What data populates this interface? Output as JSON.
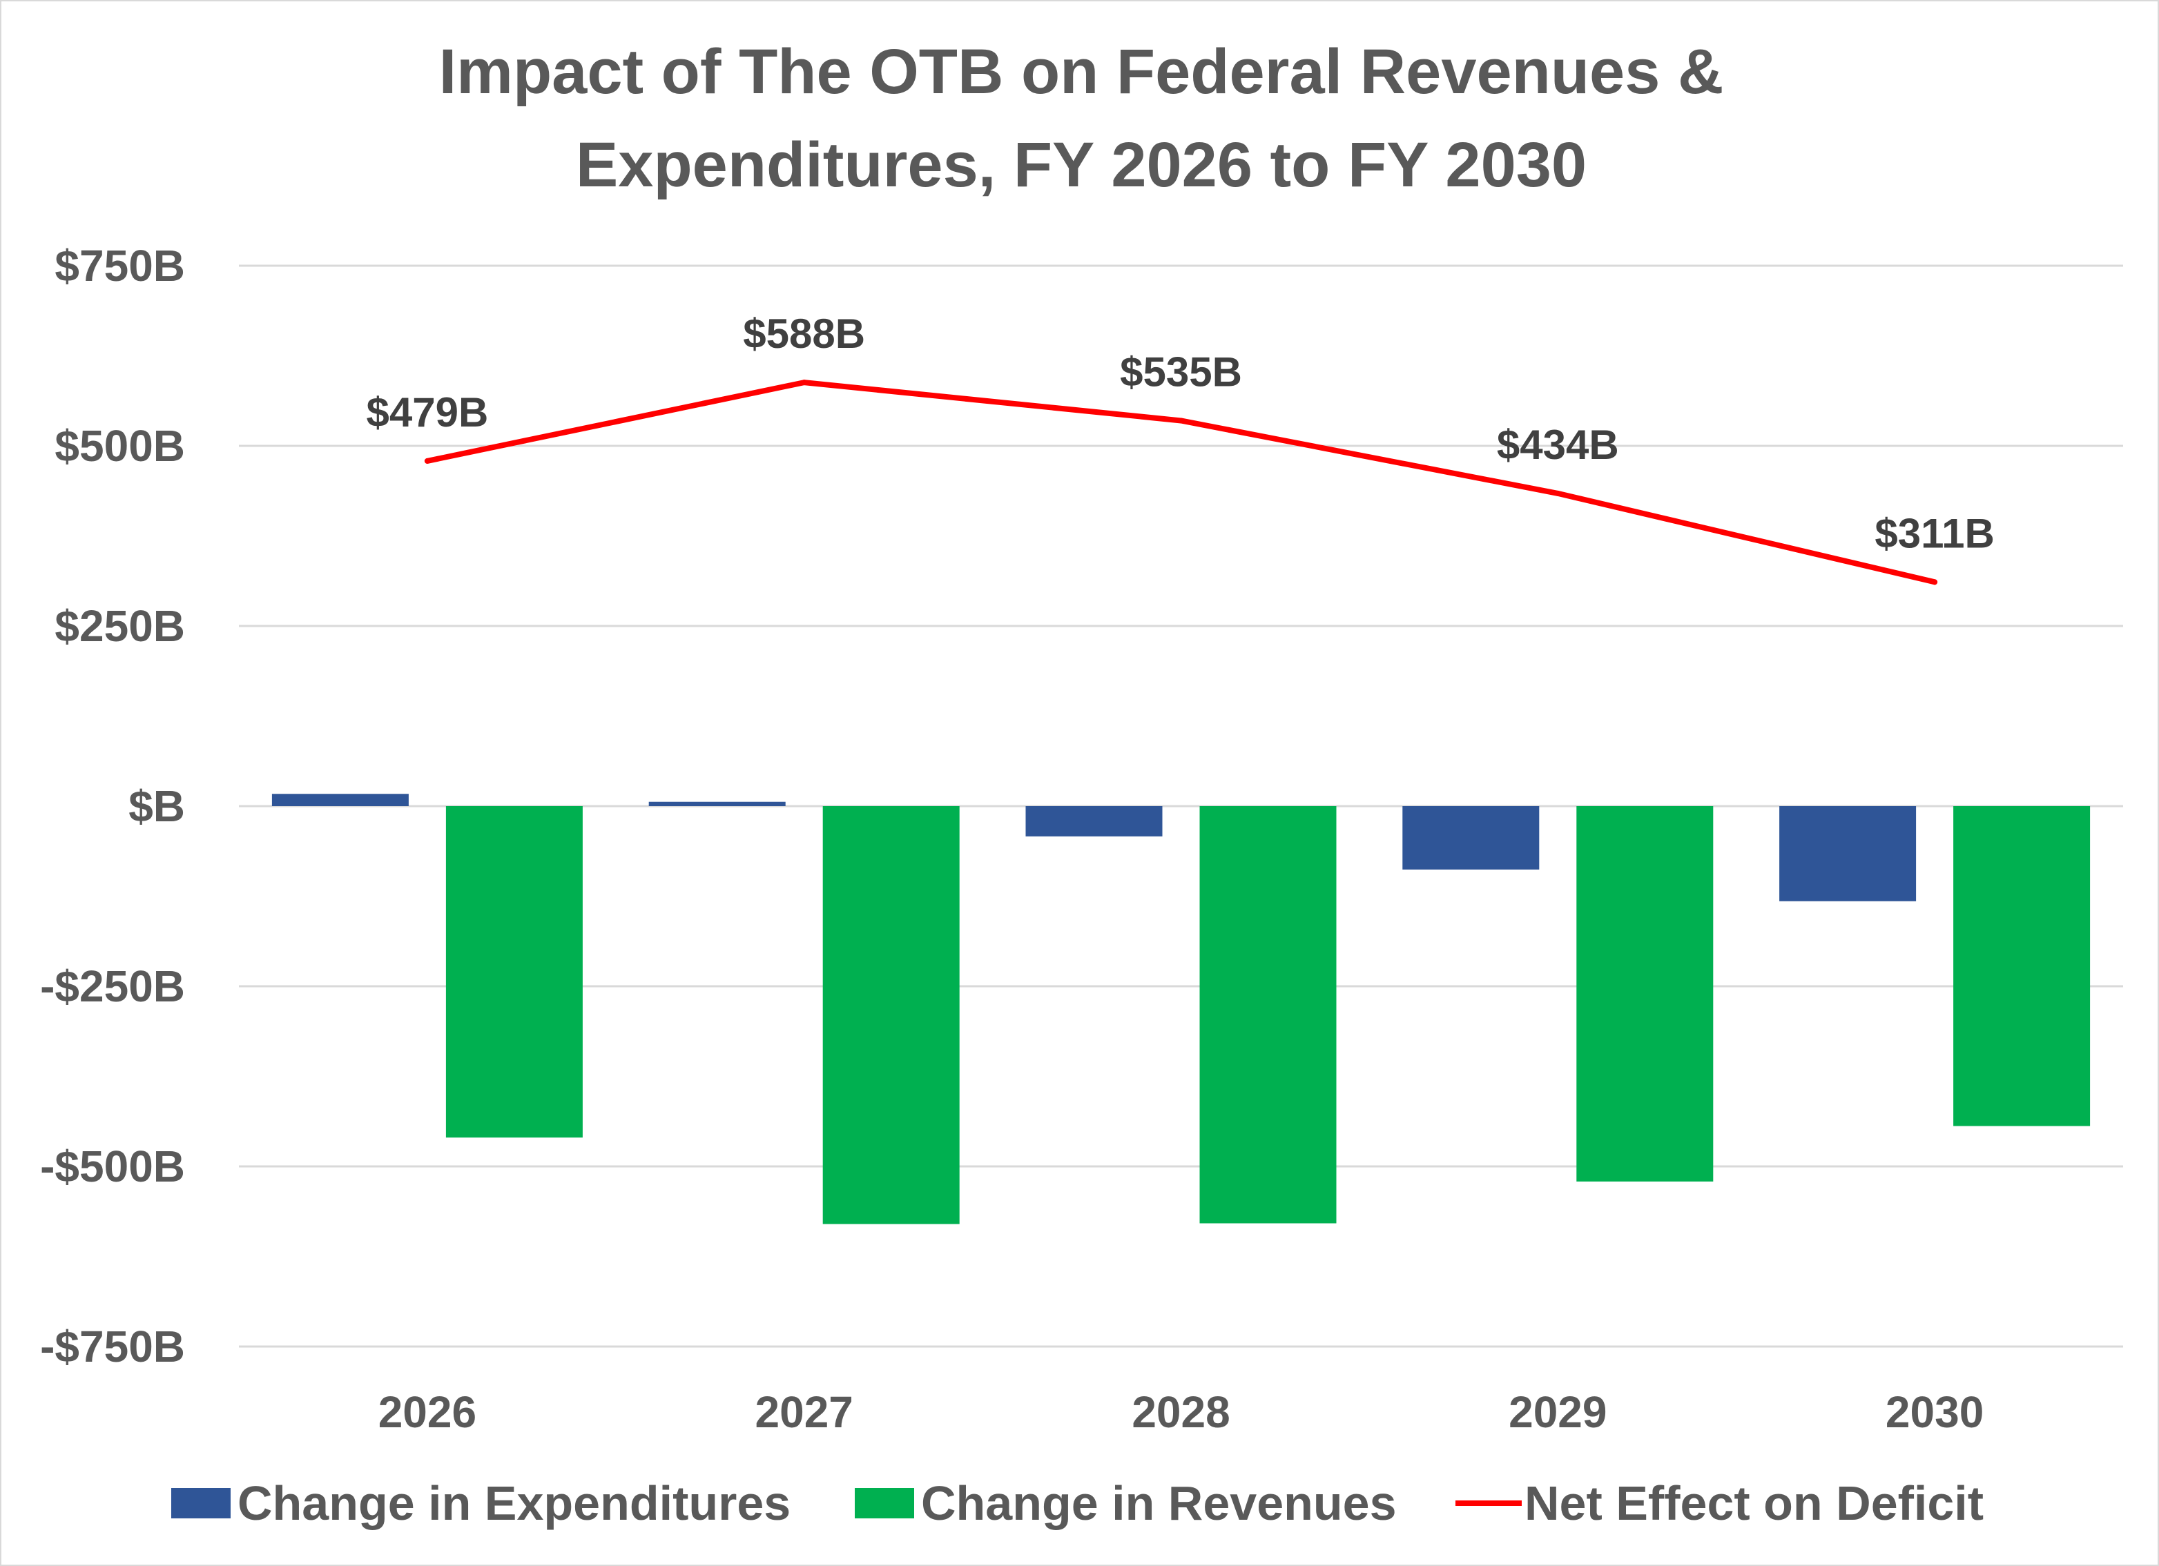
{
  "chart_data": {
    "type": "bar",
    "title": [
      "Impact of The OTB on Federal Revenues &",
      "Expenditures, FY 2026 to FY 2030"
    ],
    "xlabel": "",
    "ylabel": "",
    "categories": [
      "2026",
      "2027",
      "2028",
      "2029",
      "2030"
    ],
    "ylim": [
      -750,
      750
    ],
    "yticks": [
      750,
      500,
      250,
      0,
      -250,
      -500,
      -750
    ],
    "ytick_labels": [
      "$750B",
      "$500B",
      "$250B",
      "$B",
      "-$250B",
      "-$500B",
      "-$750B"
    ],
    "grid": true,
    "legend_position": "bottom",
    "series": [
      {
        "name": "Change in Expenditures",
        "type": "bar",
        "color": "#2F5597",
        "values": [
          17,
          6,
          -42,
          -88,
          -132
        ]
      },
      {
        "name": "Change in Revenues",
        "type": "bar",
        "color": "#00B050",
        "values": [
          -460,
          -580,
          -579,
          -521,
          -444
        ]
      },
      {
        "name": "Net Effect on Deficit",
        "type": "line",
        "color": "#FF0000",
        "values": [
          479,
          588,
          535,
          434,
          311
        ],
        "labels": [
          "$479B",
          "$588B",
          "$535B",
          "$434B",
          "$311B"
        ]
      }
    ]
  }
}
